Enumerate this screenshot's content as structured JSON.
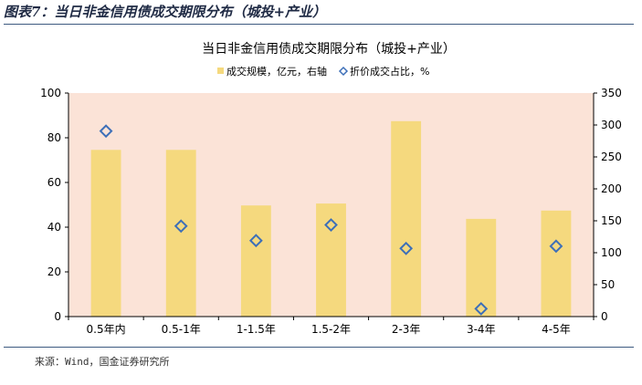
{
  "figure": {
    "caption": "图表7：当日非金信用债成交期限分布（城投+产业）",
    "source": "来源：Wind，国金证券研究所"
  },
  "chart_data": {
    "type": "bar",
    "title": "当日非金信用债成交期限分布（城投+产业）",
    "categories": [
      "0.5年内",
      "0.5-1年",
      "1-1.5年",
      "1.5-2年",
      "2-3年",
      "3-4年",
      "4-5年"
    ],
    "series": [
      {
        "name": "成交规模，亿元，右轴",
        "type": "bar",
        "axis": "right",
        "values": [
          261,
          261,
          174,
          177,
          306,
          153,
          166
        ],
        "color": "#f5d97e"
      },
      {
        "name": "折价成交占比，%",
        "type": "scatter",
        "axis": "left",
        "values": [
          83,
          40.5,
          34,
          41,
          30.5,
          3.5,
          31.5
        ],
        "color": "#3d6fb8",
        "marker": "diamond"
      }
    ],
    "y_left": {
      "min": 0,
      "max": 100,
      "ticks": [
        0,
        20,
        40,
        60,
        80,
        100
      ]
    },
    "y_right": {
      "min": 0,
      "max": 350,
      "ticks": [
        0,
        50,
        100,
        150,
        200,
        250,
        300,
        350
      ]
    },
    "plot_background": "#fbe3d7",
    "legend_position": "top"
  }
}
